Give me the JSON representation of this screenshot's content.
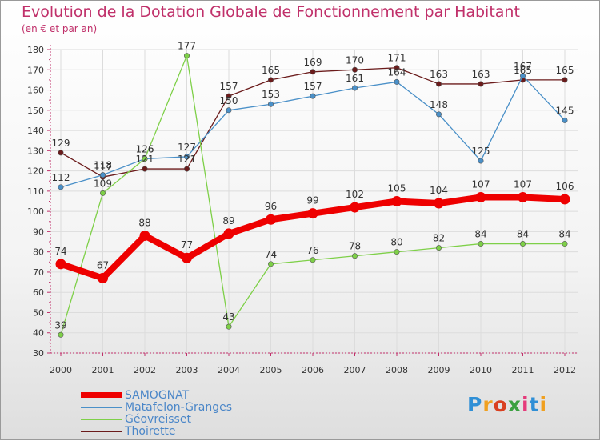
{
  "title": "Evolution de la Dotation Globale de Fonctionnement par Habitant",
  "subtitle": "(en € et par an)",
  "logo": "Proxiti",
  "chart_data": {
    "type": "line",
    "title": "Evolution de la Dotation Globale de Fonctionnement par Habitant",
    "ylabel": "(en € et par an)",
    "xlabel": "",
    "categories": [
      "2000",
      "2001",
      "2002",
      "2003",
      "2004",
      "2005",
      "2006",
      "2007",
      "2008",
      "2009",
      "2010",
      "2011",
      "2012"
    ],
    "ylim": [
      30,
      180
    ],
    "yticks": [
      30,
      40,
      50,
      60,
      70,
      80,
      90,
      100,
      110,
      120,
      130,
      140,
      150,
      160,
      170,
      180
    ],
    "legend_position": "bottom-left",
    "series": [
      {
        "name": "SAMOGNAT",
        "color": "#ee0000",
        "values": [
          74,
          67,
          88,
          77,
          89,
          96,
          99,
          102,
          105,
          104,
          107,
          107,
          106
        ]
      },
      {
        "name": "Matafelon-Granges",
        "color": "#4a90c8",
        "values": [
          112,
          118,
          126,
          127,
          150,
          153,
          157,
          161,
          164,
          148,
          125,
          167,
          145
        ]
      },
      {
        "name": "Géovreisset",
        "color": "#7ed048",
        "values": [
          39,
          109,
          126,
          177,
          43,
          74,
          76,
          78,
          80,
          82,
          84,
          84,
          84
        ]
      },
      {
        "name": "Thoirette",
        "color": "#6b1b1b",
        "values": [
          129,
          117,
          121,
          121,
          157,
          165,
          169,
          170,
          171,
          163,
          163,
          165,
          165
        ]
      }
    ]
  }
}
